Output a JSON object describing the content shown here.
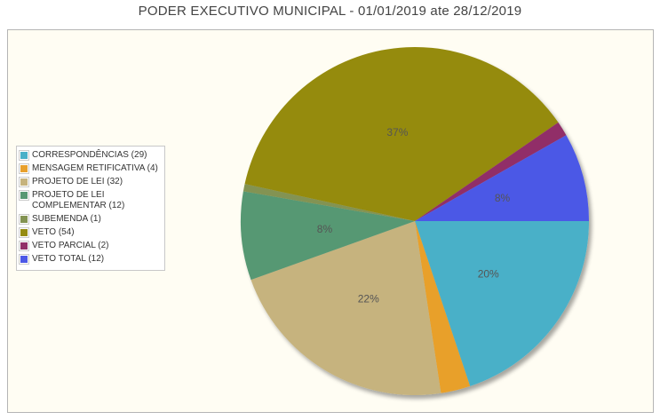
{
  "chart_data": {
    "type": "pie",
    "title": "PODER EXECUTIVO MUNICIPAL - 01/01/2019 ate 28/12/2019",
    "legend_position": "left",
    "slices": [
      {
        "label": "CORRESPONDÊNCIAS (29)",
        "value": 29,
        "color": "#4ab0c8",
        "pct_label": "20%"
      },
      {
        "label": "MENSAGEM RETIFICATIVA (4)",
        "value": 4,
        "color": "#e8a02c",
        "pct_label": ""
      },
      {
        "label": "PROJETO DE LEI (32)",
        "value": 32,
        "color": "#c6b37e",
        "pct_label": "22%"
      },
      {
        "label": "PROJETO DE LEI COMPLEMENTAR (12)",
        "value": 12,
        "color": "#579873",
        "pct_label": "8%"
      },
      {
        "label": "SUBEMENDA (1)",
        "value": 1,
        "color": "#839352",
        "pct_label": ""
      },
      {
        "label": "VETO (54)",
        "value": 54,
        "color": "#958b11",
        "pct_label": "37%"
      },
      {
        "label": "VETO PARCIAL (2)",
        "value": 2,
        "color": "#912f67",
        "pct_label": ""
      },
      {
        "label": "VETO TOTAL (12)",
        "value": 12,
        "color": "#4c58e6",
        "pct_label": "8%"
      }
    ]
  }
}
